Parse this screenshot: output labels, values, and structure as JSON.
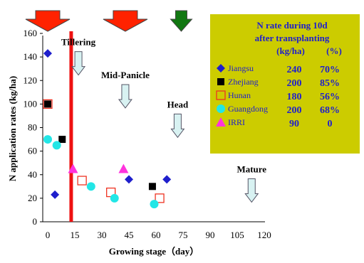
{
  "chart_data": {
    "type": "scatter",
    "xlabel": "Growing stage（day）",
    "ylabel": "N application rates (kg/ha)",
    "xlim": [
      0,
      120
    ],
    "ylim": [
      0,
      160
    ],
    "xticks": [
      "0",
      "15",
      "30",
      "45",
      "60",
      "75",
      "90",
      "105",
      "120"
    ],
    "yticks": [
      "0",
      "20",
      "40",
      "60",
      "80",
      "100",
      "120",
      "140",
      "160"
    ],
    "grid": false,
    "legend_position": "top-right",
    "legend_title_line1": "N rate during 10d",
    "legend_title_line2": "after transplanting",
    "legend_col_kg": "(kg/ha)",
    "legend_col_pct": "(%)",
    "series": [
      {
        "name": "Jiangsu",
        "marker": "diamond",
        "color": "#1f1fcc",
        "points": [
          [
            0,
            143
          ],
          [
            4,
            23
          ],
          [
            45,
            36
          ],
          [
            66,
            36
          ]
        ],
        "kg": "240",
        "pct": "70%"
      },
      {
        "name": "Zhejiang",
        "marker": "square",
        "color": "#000000",
        "points": [
          [
            0,
            100
          ],
          [
            8,
            70
          ],
          [
            58,
            30
          ]
        ],
        "kg": "200",
        "pct": "85%"
      },
      {
        "name": "Hunan",
        "marker": "open-square",
        "color": "#ee3322",
        "points": [
          [
            0,
            100
          ],
          [
            19,
            35
          ],
          [
            35,
            25
          ],
          [
            62,
            20
          ]
        ],
        "kg": "180",
        "pct": "56%"
      },
      {
        "name": "Guangdong",
        "marker": "circle",
        "color": "#22e6e6",
        "points": [
          [
            0,
            70
          ],
          [
            5,
            65
          ],
          [
            24,
            30
          ],
          [
            37,
            20
          ],
          [
            59,
            15
          ]
        ],
        "kg": "200",
        "pct": "68%"
      },
      {
        "name": "IRRI",
        "marker": "triangle",
        "color": "#ff33dd",
        "points": [
          [
            14,
            45
          ],
          [
            42,
            45
          ]
        ],
        "kg": "90",
        "pct": "0"
      }
    ],
    "vertical_line_x": 13,
    "stage_annotations": [
      {
        "label": "Tillering",
        "x": 17,
        "y": 150
      },
      {
        "label": "Mid-Panicle",
        "x": 43,
        "y": 122
      },
      {
        "label": "Head",
        "x": 72,
        "y": 97
      },
      {
        "label": "Mature",
        "x": 113,
        "y": 42
      }
    ],
    "top_arrows": [
      {
        "x": 0,
        "color": "#ff2200"
      },
      {
        "x": 43,
        "color": "#ff2200"
      },
      {
        "x": 74,
        "color": "#117711"
      }
    ]
  }
}
